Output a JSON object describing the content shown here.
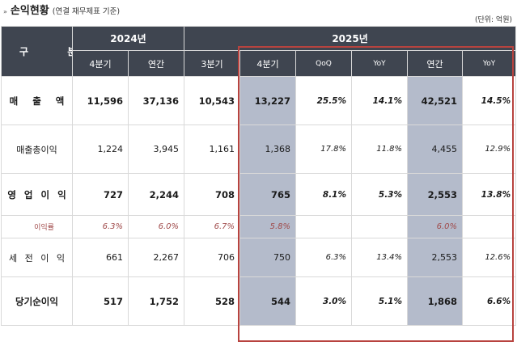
{
  "header": {
    "bullet": "»",
    "title": "손익현황",
    "subtitle": "(연결 재무제표 기준)",
    "unit": "(단위: 억원)"
  },
  "table": {
    "gubun_label": "구 분",
    "year_2024": "2024년",
    "year_2025": "2025년",
    "col_headers": [
      "4분기",
      "연간",
      "3분기",
      "4분기",
      "QoQ",
      "YoY",
      "연간",
      "YoY"
    ],
    "rows": [
      {
        "label": "매 출 액",
        "values": [
          "11,596",
          "37,136",
          "10,543",
          "13,227",
          "25.5%",
          "14.1%",
          "42,521",
          "14.5%"
        ]
      },
      {
        "label": "매출총이익",
        "values": [
          "1,224",
          "3,945",
          "1,161",
          "1,368",
          "17.8%",
          "11.8%",
          "4,455",
          "12.9%"
        ]
      },
      {
        "label": "영 업 이 익",
        "values": [
          "727",
          "2,244",
          "708",
          "765",
          "8.1%",
          "5.3%",
          "2,553",
          "13.8%"
        ]
      },
      {
        "label": "이익률",
        "values": [
          "6.3%",
          "6.0%",
          "6.7%",
          "5.8%",
          "",
          "",
          "6.0%",
          ""
        ]
      },
      {
        "label": "세 전 이 익",
        "values": [
          "661",
          "2,267",
          "706",
          "750",
          "6.3%",
          "13.4%",
          "2,553",
          "12.6%"
        ]
      },
      {
        "label": "당기순이익",
        "values": [
          "517",
          "1,752",
          "528",
          "544",
          "3.0%",
          "5.1%",
          "1,868",
          "6.6%"
        ]
      }
    ]
  },
  "colors": {
    "header_bg": "#3f4550",
    "shade": "#b4bbcb",
    "highlight_border": "#b8433f",
    "margin_text": "#a04a4a"
  }
}
